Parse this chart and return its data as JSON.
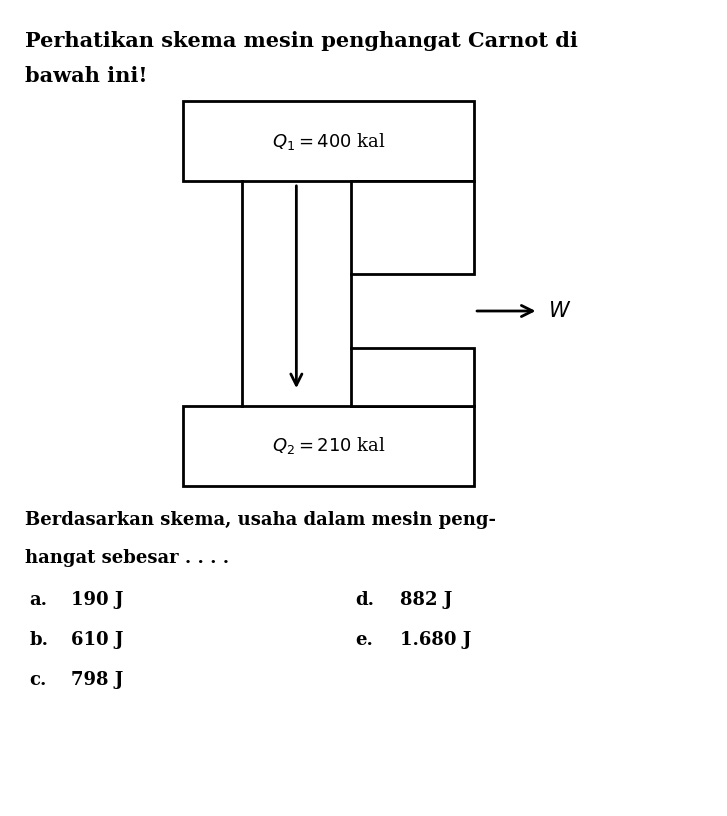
{
  "title_line1": "Perhatikan skema mesin penghangat Carnot di",
  "title_line2": "bawah ini!",
  "q1_label": "$Q_1 = 400$ kal",
  "q2_label": "$Q_2 = 210$ kal",
  "w_label": "$W$",
  "question_line1": "Berdasarkan skema, usaha dalam mesin peng-",
  "question_line2": "hangat sebesar . . . .",
  "options": [
    [
      "a.",
      "190 J",
      "d.",
      "882 J"
    ],
    [
      "b.",
      "610 J",
      "e.",
      "1.680 J"
    ],
    [
      "c.",
      "798 J",
      "",
      ""
    ]
  ],
  "bg_color": "#ffffff",
  "box_color": "#000000",
  "text_color": "#000000",
  "title_fontsize": 15,
  "label_fontsize": 13,
  "option_fontsize": 13
}
